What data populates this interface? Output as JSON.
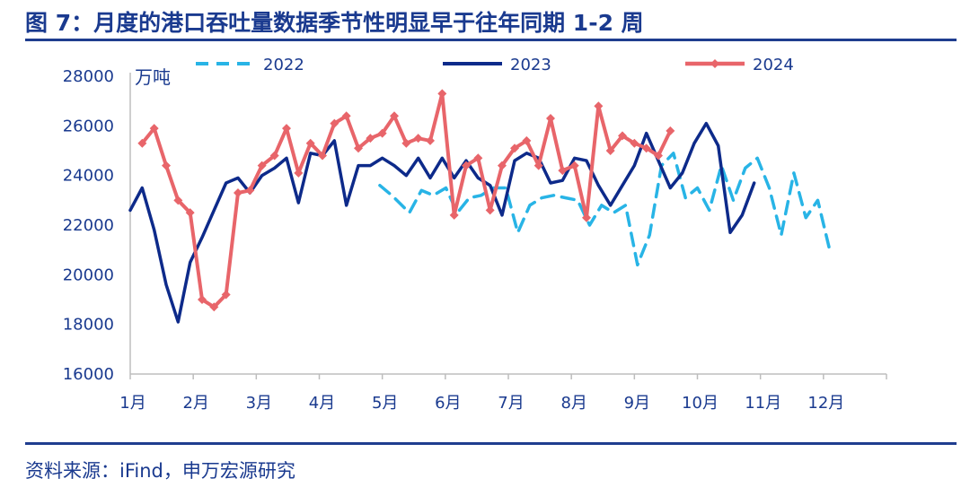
{
  "title": "图 7：月度的港口吞吐量数据季节性明显早于往年同期 1-2 周",
  "source": "资料来源：iFind，申万宏源研究",
  "chart_data": {
    "type": "line",
    "ylabel": "万吨",
    "ylim": [
      16000,
      28000
    ],
    "yticks": [
      16000,
      18000,
      20000,
      22000,
      24000,
      26000,
      28000
    ],
    "xlim": [
      0,
      12
    ],
    "month_labels": [
      "1月",
      "2月",
      "3月",
      "4月",
      "5月",
      "6月",
      "7月",
      "8月",
      "9月",
      "10月",
      "11月",
      "12月"
    ],
    "legend_position": "top",
    "series": [
      {
        "name": "2022",
        "color": "#28b4e6",
        "style": "dashed",
        "points": [
          [
            3.96,
            23600
          ],
          [
            4.15,
            23200
          ],
          [
            4.43,
            22500
          ],
          [
            4.62,
            23400
          ],
          [
            4.81,
            23200
          ],
          [
            5.01,
            23500
          ],
          [
            5.19,
            22500
          ],
          [
            5.38,
            23100
          ],
          [
            5.57,
            23200
          ],
          [
            5.76,
            23500
          ],
          [
            5.96,
            23500
          ],
          [
            6.15,
            21700
          ],
          [
            6.34,
            22800
          ],
          [
            6.53,
            23100
          ],
          [
            6.72,
            23200
          ],
          [
            6.91,
            23100
          ],
          [
            7.1,
            23000
          ],
          [
            7.29,
            22000
          ],
          [
            7.48,
            22800
          ],
          [
            7.67,
            22500
          ],
          [
            7.86,
            22800
          ],
          [
            8.05,
            20400
          ],
          [
            8.24,
            21600
          ],
          [
            8.43,
            24400
          ],
          [
            8.62,
            24900
          ],
          [
            8.81,
            23100
          ],
          [
            9.0,
            23500
          ],
          [
            9.19,
            22600
          ],
          [
            9.38,
            24400
          ],
          [
            9.57,
            23000
          ],
          [
            9.76,
            24300
          ],
          [
            9.95,
            24700
          ],
          [
            10.14,
            23500
          ],
          [
            10.33,
            21600
          ],
          [
            10.53,
            24100
          ],
          [
            10.72,
            22300
          ],
          [
            10.91,
            23000
          ],
          [
            11.1,
            21000
          ]
        ]
      },
      {
        "name": "2023",
        "color": "#0d2a8a",
        "style": "solid",
        "points": [
          [
            0.0,
            22600
          ],
          [
            0.19,
            23500
          ],
          [
            0.38,
            21800
          ],
          [
            0.57,
            19600
          ],
          [
            0.76,
            18100
          ],
          [
            0.95,
            20500
          ],
          [
            1.14,
            21500
          ],
          [
            1.33,
            22600
          ],
          [
            1.52,
            23700
          ],
          [
            1.71,
            23900
          ],
          [
            1.9,
            23300
          ],
          [
            2.09,
            24000
          ],
          [
            2.29,
            24300
          ],
          [
            2.48,
            24700
          ],
          [
            2.67,
            22900
          ],
          [
            2.86,
            24900
          ],
          [
            3.05,
            24800
          ],
          [
            3.24,
            25400
          ],
          [
            3.43,
            22800
          ],
          [
            3.62,
            24400
          ],
          [
            3.81,
            24400
          ],
          [
            4.0,
            24700
          ],
          [
            4.19,
            24400
          ],
          [
            4.38,
            24000
          ],
          [
            4.57,
            24700
          ],
          [
            4.76,
            23900
          ],
          [
            4.95,
            24700
          ],
          [
            5.14,
            23900
          ],
          [
            5.33,
            24600
          ],
          [
            5.52,
            23900
          ],
          [
            5.71,
            23600
          ],
          [
            5.9,
            22400
          ],
          [
            6.1,
            24600
          ],
          [
            6.29,
            24900
          ],
          [
            6.48,
            24700
          ],
          [
            6.67,
            23700
          ],
          [
            6.86,
            23800
          ],
          [
            7.05,
            24700
          ],
          [
            7.24,
            24600
          ],
          [
            7.43,
            23600
          ],
          [
            7.62,
            22800
          ],
          [
            7.81,
            23600
          ],
          [
            8.0,
            24400
          ],
          [
            8.19,
            25700
          ],
          [
            8.38,
            24600
          ],
          [
            8.57,
            23500
          ],
          [
            8.76,
            24100
          ],
          [
            8.95,
            25300
          ],
          [
            9.14,
            26100
          ],
          [
            9.33,
            25200
          ],
          [
            9.52,
            21700
          ],
          [
            9.71,
            22400
          ],
          [
            9.9,
            23700
          ]
        ]
      },
      {
        "name": "2024",
        "color": "#e8656a",
        "style": "solid-marker",
        "points": [
          [
            0.19,
            25300
          ],
          [
            0.38,
            25900
          ],
          [
            0.57,
            24400
          ],
          [
            0.76,
            23000
          ],
          [
            0.95,
            22500
          ],
          [
            1.14,
            19000
          ],
          [
            1.33,
            18700
          ],
          [
            1.52,
            19200
          ],
          [
            1.71,
            23300
          ],
          [
            1.9,
            23400
          ],
          [
            2.09,
            24400
          ],
          [
            2.29,
            24800
          ],
          [
            2.48,
            25900
          ],
          [
            2.67,
            24100
          ],
          [
            2.86,
            25300
          ],
          [
            3.05,
            24800
          ],
          [
            3.24,
            26100
          ],
          [
            3.43,
            26400
          ],
          [
            3.62,
            25100
          ],
          [
            3.81,
            25500
          ],
          [
            4.0,
            25700
          ],
          [
            4.19,
            26400
          ],
          [
            4.38,
            25300
          ],
          [
            4.57,
            25500
          ],
          [
            4.76,
            25400
          ],
          [
            4.95,
            27300
          ],
          [
            5.14,
            22400
          ],
          [
            5.33,
            24400
          ],
          [
            5.52,
            24700
          ],
          [
            5.71,
            22600
          ],
          [
            5.9,
            24400
          ],
          [
            6.1,
            25100
          ],
          [
            6.29,
            25400
          ],
          [
            6.48,
            24400
          ],
          [
            6.67,
            26300
          ],
          [
            6.86,
            24200
          ],
          [
            7.05,
            24400
          ],
          [
            7.24,
            22300
          ],
          [
            7.43,
            26800
          ],
          [
            7.62,
            25000
          ],
          [
            7.81,
            25600
          ],
          [
            8.0,
            25300
          ],
          [
            8.19,
            25100
          ],
          [
            8.38,
            24800
          ],
          [
            8.57,
            25800
          ]
        ]
      }
    ]
  }
}
